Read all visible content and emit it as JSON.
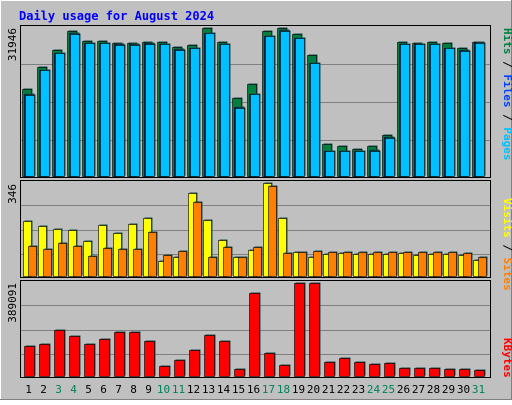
{
  "chart_data": [
    {
      "type": "bar",
      "title": "Daily usage for August 2024",
      "categories": [
        "1",
        "2",
        "3",
        "4",
        "5",
        "6",
        "7",
        "8",
        "9",
        "10",
        "11",
        "12",
        "13",
        "14",
        "15",
        "16",
        "17",
        "18",
        "19",
        "20",
        "21",
        "22",
        "23",
        "24",
        "25",
        "26",
        "27",
        "28",
        "29",
        "30",
        "31"
      ],
      "weekend_days": [
        "3",
        "4",
        "10",
        "11",
        "17",
        "18",
        "24",
        "25",
        "31"
      ],
      "y_max_label": "31946",
      "ylim": [
        0,
        31946
      ],
      "right_label": {
        "pages": "Pages",
        "files": "Files",
        "hits": "Hits",
        "sep": "/"
      },
      "series": [
        {
          "name": "Hits",
          "values": [
            18800,
            23500,
            27100,
            31300,
            29100,
            29100,
            28700,
            28700,
            29000,
            28900,
            27900,
            28300,
            31946,
            28900,
            16800,
            19800,
            31200,
            31900,
            30700,
            26100,
            6800,
            6400,
            5800,
            6400,
            8900,
            29000,
            28800,
            29000,
            28800,
            27700,
            29000
          ]
        },
        {
          "name": "Files",
          "values": [
            17600,
            22900,
            26600,
            30800,
            28800,
            28800,
            28400,
            28400,
            28700,
            28600,
            27400,
            27700,
            30800,
            28500,
            14800,
            17800,
            30300,
            31500,
            29800,
            24400,
            5500,
            5400,
            5400,
            5600,
            8400,
            28600,
            28600,
            28600,
            27700,
            27100,
            28900
          ]
        },
        {
          "name": "Pages",
          "values": [
            17500,
            22800,
            26500,
            30700,
            28700,
            28700,
            28300,
            28300,
            28600,
            28500,
            27300,
            27600,
            30800,
            28500,
            14700,
            17700,
            30200,
            31300,
            29700,
            24300,
            5500,
            5400,
            5300,
            5500,
            8300,
            28500,
            28500,
            28500,
            27600,
            27000,
            28800
          ]
        }
      ]
    },
    {
      "type": "bar",
      "y_max_label": "346",
      "ylim": [
        0,
        346
      ],
      "right_label": {
        "sites": "Sites",
        "visits": "Visits",
        "sep": "/"
      },
      "series": [
        {
          "name": "Visits",
          "values": [
            205,
            185,
            175,
            170,
            130,
            190,
            160,
            195,
            215,
            55,
            70,
            310,
            210,
            135,
            72,
            95,
            346,
            215,
            90,
            70,
            82,
            85,
            80,
            82,
            80,
            85,
            78,
            82,
            80,
            78,
            60
          ]
        },
        {
          "name": "Sites",
          "values": [
            112,
            102,
            122,
            110,
            75,
            105,
            102,
            102,
            165,
            78,
            92,
            275,
            72,
            108,
            72,
            108,
            335,
            86,
            90,
            92,
            90,
            90,
            90,
            90,
            90,
            90,
            88,
            88,
            88,
            85,
            70
          ]
        }
      ]
    },
    {
      "type": "bar",
      "y_max_label": "389091",
      "ylim": [
        0,
        389091
      ],
      "right_label": {
        "kbytes": "KBytes"
      },
      "series": [
        {
          "name": "KBytes",
          "values": [
            126000,
            133000,
            193000,
            167000,
            134000,
            155000,
            184000,
            186000,
            145000,
            40000,
            65000,
            108000,
            171000,
            145000,
            30000,
            349000,
            95000,
            45000,
            389000,
            389000,
            60000,
            75000,
            60000,
            51000,
            53000,
            35000,
            35000,
            35000,
            29000,
            29000,
            27000
          ]
        }
      ]
    }
  ]
}
